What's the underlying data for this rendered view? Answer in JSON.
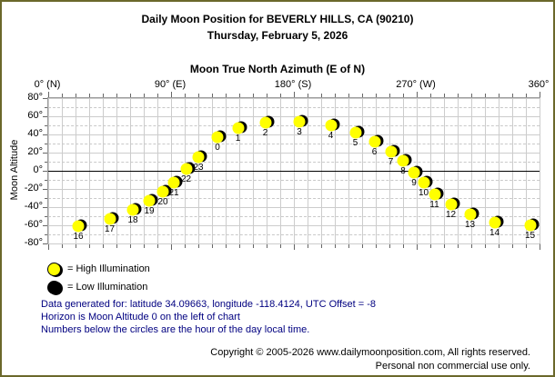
{
  "header": {
    "title_line1": "Daily Moon Position for BEVERLY HILLS, CA (90210)",
    "title_line2": "Thursday, February 5, 2026"
  },
  "chart_data": {
    "type": "scatter",
    "title": "Moon True North Azimuth (E of N)",
    "ylabel": "Moon Altitude",
    "grid": true,
    "x_axis": {
      "min": 0,
      "max": 360,
      "grid_step": 10,
      "major_step": 90,
      "ticks": [
        {
          "az": 0,
          "label": "0° (N)"
        },
        {
          "az": 90,
          "label": "90° (E)"
        },
        {
          "az": 180,
          "label": "180° (S)"
        },
        {
          "az": 270,
          "label": "270° (W)"
        },
        {
          "az": 360,
          "label": "360°"
        }
      ]
    },
    "y_axis": {
      "min": -80,
      "max": 80,
      "minor_step": 10,
      "major_step": 20,
      "unit": "°"
    },
    "horizon_altitude": 0,
    "marker_colors": {
      "high": "#ffff00",
      "low": "#000000"
    },
    "points": [
      {
        "hour": 0,
        "azimuth": 124,
        "altitude": 37,
        "illumination": "high"
      },
      {
        "hour": 1,
        "azimuth": 139,
        "altitude": 47,
        "illumination": "high"
      },
      {
        "hour": 2,
        "azimuth": 159,
        "altitude": 53,
        "illumination": "high"
      },
      {
        "hour": 3,
        "azimuth": 184,
        "altitude": 54,
        "illumination": "high"
      },
      {
        "hour": 4,
        "azimuth": 207,
        "altitude": 50,
        "illumination": "high"
      },
      {
        "hour": 5,
        "azimuth": 225,
        "altitude": 42,
        "illumination": "high"
      },
      {
        "hour": 6,
        "azimuth": 239,
        "altitude": 32,
        "illumination": "high"
      },
      {
        "hour": 7,
        "azimuth": 251,
        "altitude": 21,
        "illumination": "high"
      },
      {
        "hour": 8,
        "azimuth": 260,
        "altitude": 11,
        "illumination": "high"
      },
      {
        "hour": 9,
        "azimuth": 268,
        "altitude": -2,
        "illumination": "high"
      },
      {
        "hour": 10,
        "azimuth": 275,
        "altitude": -13,
        "illumination": "high"
      },
      {
        "hour": 11,
        "azimuth": 283,
        "altitude": -26,
        "illumination": "high"
      },
      {
        "hour": 12,
        "azimuth": 295,
        "altitude": -37,
        "illumination": "high"
      },
      {
        "hour": 13,
        "azimuth": 309,
        "altitude": -48,
        "illumination": "high"
      },
      {
        "hour": 14,
        "azimuth": 327,
        "altitude": -57,
        "illumination": "high"
      },
      {
        "hour": 15,
        "azimuth": 353,
        "altitude": -60,
        "illumination": "high"
      },
      {
        "hour": 16,
        "azimuth": 22,
        "altitude": -61,
        "illumination": "high"
      },
      {
        "hour": 17,
        "azimuth": 45,
        "altitude": -53,
        "illumination": "high"
      },
      {
        "hour": 18,
        "azimuth": 62,
        "altitude": -43,
        "illumination": "high"
      },
      {
        "hour": 19,
        "azimuth": 74,
        "altitude": -33,
        "illumination": "high"
      },
      {
        "hour": 20,
        "azimuth": 84,
        "altitude": -23,
        "illumination": "high"
      },
      {
        "hour": 21,
        "azimuth": 92,
        "altitude": -13,
        "illumination": "high"
      },
      {
        "hour": 22,
        "azimuth": 101,
        "altitude": 2,
        "illumination": "high"
      },
      {
        "hour": 23,
        "azimuth": 110,
        "altitude": 15,
        "illumination": "high"
      }
    ]
  },
  "legend": {
    "high_label": "= High Illumination",
    "low_label": "= Low Illumination",
    "high_color": "#ffff00",
    "low_color": "#000000"
  },
  "info": {
    "color": "#000080",
    "line1": "Data generated for: latitude 34.09663, longitude -118.4124, UTC Offset = -8",
    "line2": "Horizon is Moon Altitude 0 on the left of chart",
    "line3": "Numbers below the circles are the hour of the day local time."
  },
  "footer": {
    "line1": "Copyright © 2005-2026 www.dailymoonposition.com, All rights reserved.",
    "line2": "Personal non commercial use only."
  }
}
